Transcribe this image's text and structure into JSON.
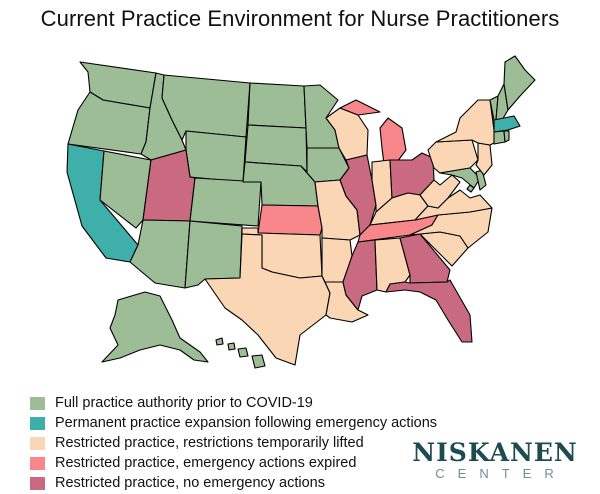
{
  "title": "Current Practice Environment for Nurse Practitioners",
  "legend": [
    {
      "key": "full",
      "label": "Full practice authority prior to COVID-19",
      "color": "#9dbd96"
    },
    {
      "key": "permanent",
      "label": "Permanent practice expansion following emergency actions",
      "color": "#3fb0a9"
    },
    {
      "key": "temporary",
      "label": "Restricted practice, restrictions temporarily lifted",
      "color": "#fbd6b4"
    },
    {
      "key": "expired",
      "label": "Restricted practice, emergency actions expired",
      "color": "#f7878a"
    },
    {
      "key": "none",
      "label": "Restricted practice, no emergency actions",
      "color": "#c96a80"
    }
  ],
  "brand": {
    "name": "NISKANEN",
    "sub": "CENTER",
    "name_color": "#1e4b52",
    "sub_color": "#6a9097"
  },
  "states": {
    "WA": "full",
    "OR": "full",
    "ID": "full",
    "MT": "full",
    "WY": "full",
    "NV": "full",
    "AZ": "full",
    "NM": "full",
    "CO": "full",
    "ND": "full",
    "SD": "full",
    "NE": "full",
    "MN": "full",
    "IA": "full",
    "ME": "full",
    "VT": "full",
    "NH": "full",
    "RI": "full",
    "CT": "full",
    "DC": "full",
    "MD": "full",
    "AK": "full",
    "HI": "full",
    "DE": "full",
    "CA": "permanent",
    "MA": "permanent",
    "TX": "temporary",
    "OK": "temporary",
    "AR": "temporary",
    "LA": "temporary",
    "MO": "temporary",
    "WI": "temporary",
    "IN": "temporary",
    "KY": "temporary",
    "AL": "temporary",
    "SC": "temporary",
    "NC": "temporary",
    "VA": "temporary",
    "WV": "temporary",
    "PA": "temporary",
    "NY": "temporary",
    "NJ": "temporary",
    "KS": "expired",
    "MI": "expired",
    "TN": "expired",
    "UT": "none",
    "IL": "none",
    "OH": "none",
    "MS": "none",
    "GA": "none",
    "FL": "none"
  }
}
